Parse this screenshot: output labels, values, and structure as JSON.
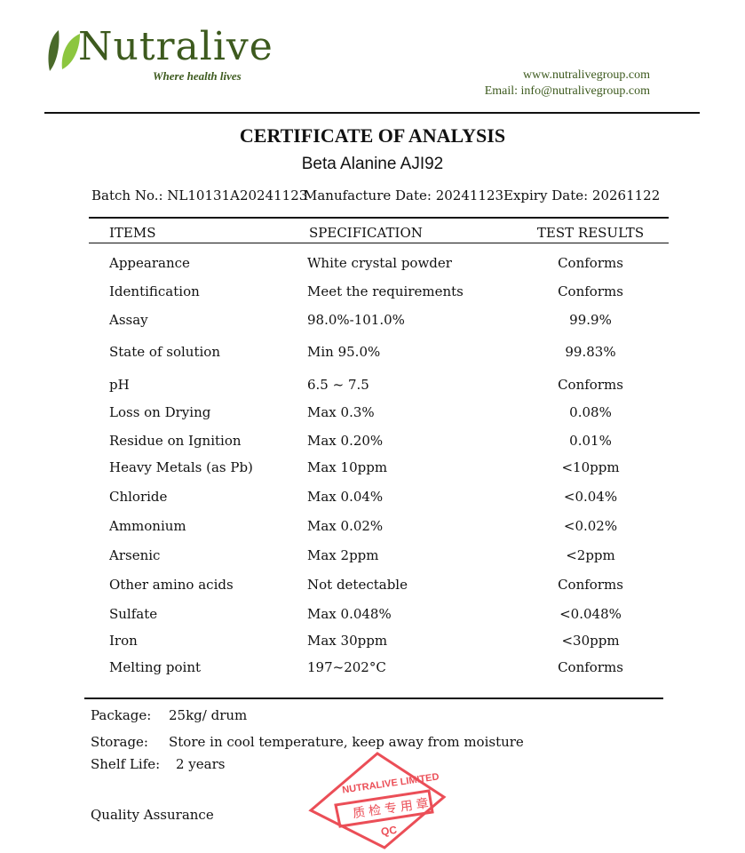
{
  "header": {
    "logo": "Nutralive",
    "tagline": "Where health lives",
    "website": "www.nutralivegroup.com",
    "email": "Email: info@nutralivegroup.com"
  },
  "title": "CERTIFICATE OF ANALYSIS",
  "product": "Beta Alanine AJI92",
  "batch": "Batch No.: NL10131A20241123",
  "manufacture": "Manufacture Date: 20241123",
  "expiry": "Expiry Date: 20261122",
  "columns": [
    "ITEMS",
    "SPECIFICATION",
    "TEST RESULTS"
  ],
  "rows": [
    [
      "Appearance",
      "White crystal powder",
      "Conforms"
    ],
    [
      "Identification",
      "Meet the requirements",
      "Conforms"
    ],
    [
      "Assay",
      "98.0%-101.0%",
      "99.9%"
    ],
    [
      "State of solution",
      "Min 95.0%",
      "99.83%"
    ],
    [
      "pH",
      "6.5 ~ 7.5",
      "Conforms"
    ],
    [
      "Loss on Drying",
      "Max 0.3%",
      "0.08%"
    ],
    [
      "Residue on Ignition",
      "Max 0.20%",
      "0.01%"
    ],
    [
      "Heavy Metals (as Pb)",
      "Max 10ppm",
      "<10ppm"
    ],
    [
      "Chloride",
      "Max 0.04%",
      "<0.04%"
    ],
    [
      "Ammonium",
      "Max 0.02%",
      "<0.02%"
    ],
    [
      "Arsenic",
      "Max 2ppm",
      "<2ppm"
    ],
    [
      "Other amino acids",
      "Not detectable",
      "Conforms"
    ],
    [
      "Sulfate",
      "Max 0.048%",
      "<0.048%"
    ],
    [
      "Iron",
      "Max 30ppm",
      "<30ppm"
    ],
    [
      "Melting point",
      "197~202°C",
      "Conforms"
    ]
  ],
  "footer": {
    "package_label": "Package:",
    "package": "25kg/ drum",
    "storage_label": "Storage:",
    "storage": "Store in cool temperature, keep away from moisture",
    "shelf_label": "Shelf Life:",
    "shelf": "2 years",
    "qa": "Quality Assurance"
  },
  "stamp": {
    "top": "NUTRALIVE LIMITED",
    "middle": "质检专用章",
    "bottom": "QC",
    "color": "#e8303a"
  }
}
